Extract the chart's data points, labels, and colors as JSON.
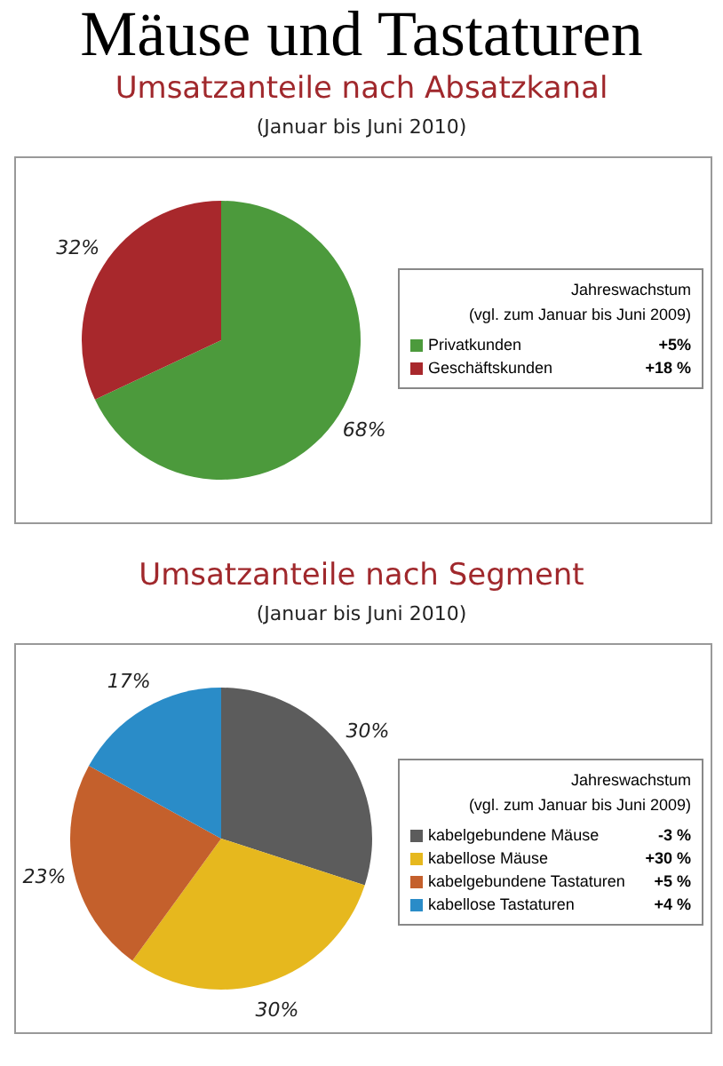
{
  "chart_data": [
    {
      "type": "pie",
      "title": "Mäuse und Tastaturen",
      "subtitle": "Umsatzanteile nach Absatzkanal",
      "categories": [
        "Privatkunden",
        "Geschäftskunden"
      ],
      "values": [
        68,
        32
      ],
      "colors": [
        "#4c9a3c",
        "#a8282c"
      ],
      "value_labels": [
        "68%",
        "32%"
      ],
      "legend": "right",
      "legend_title": "Jahreswachstum\n(vgl. zum Januar bis Juni 2009)",
      "annotations": [
        "(Januar bis Juni 2010)",
        "+5%",
        "+18 %"
      ]
    },
    {
      "type": "pie",
      "title": "Umsatzanteile nach Segment",
      "subtitle": "(Januar bis Juni 2010)",
      "categories": [
        "kabelgebundene Mäuse",
        "kabellose Mäuse",
        "kabelgebundene Tastaturen",
        "kabellose Tastaturen"
      ],
      "values": [
        30,
        30,
        23,
        17
      ],
      "colors": [
        "#5c5c5c",
        "#e6b81e",
        "#c4602c",
        "#2a8cc8"
      ],
      "value_labels": [
        "30%",
        "30%",
        "23%",
        "17%"
      ],
      "legend": "right",
      "legend_title": "Jahreswachstum\n(vgl. zum Januar bis Juni 2009)",
      "annotations": [
        "-3 %",
        "+30 %",
        "+5 %",
        "+4 %"
      ]
    }
  ]
}
